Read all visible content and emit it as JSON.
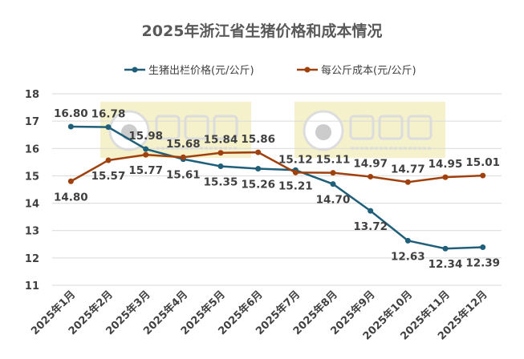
{
  "chart_data": {
    "type": "line",
    "title": "2025年浙江省生猪价格和成本情况",
    "categories": [
      "2025年1月",
      "2025年2月",
      "2025年3月",
      "2025年4月",
      "2025年5月",
      "2025年6月",
      "2025年7月",
      "2025年8月",
      "2025年9月",
      "2025年10月",
      "2025年11月",
      "2025年12月"
    ],
    "series": [
      {
        "name": "生猪出栏价格(元/公斤)",
        "color": "#1f5f7a",
        "values": [
          16.8,
          16.78,
          15.98,
          15.61,
          15.35,
          15.26,
          15.21,
          14.7,
          13.72,
          12.63,
          12.34,
          12.39
        ]
      },
      {
        "name": "每公斤成本(元/公斤)",
        "color": "#a0410d",
        "values": [
          14.8,
          15.57,
          15.77,
          15.68,
          15.84,
          15.86,
          15.12,
          15.11,
          14.97,
          14.77,
          14.95,
          15.01
        ]
      }
    ],
    "ylim": [
      11,
      18
    ],
    "yticks": [
      11,
      12,
      13,
      14,
      15,
      16,
      17,
      18
    ],
    "grid": true,
    "legend": "top",
    "xlabel": "",
    "ylabel": "",
    "watermark": "大畜牧 www.dxumu.com"
  }
}
